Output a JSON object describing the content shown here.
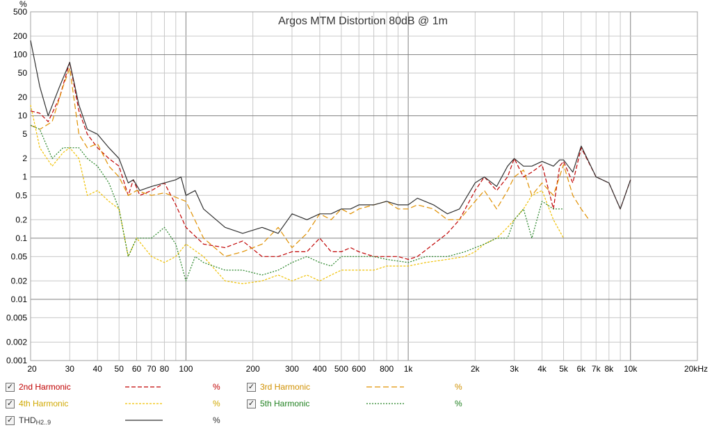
{
  "chart_data": {
    "type": "line",
    "title": "Argos MTM Distortion 80dB @ 1m",
    "xscale": "log",
    "yscale": "log",
    "xlim": [
      20,
      20000
    ],
    "ylim": [
      0.001,
      500
    ],
    "ylabel_unit": "%",
    "x_ticks": [
      {
        "v": 20,
        "label": "20"
      },
      {
        "v": 30,
        "label": "30"
      },
      {
        "v": 40,
        "label": "40"
      },
      {
        "v": 50,
        "label": "50"
      },
      {
        "v": 60,
        "label": "60"
      },
      {
        "v": 70,
        "label": "70"
      },
      {
        "v": 80,
        "label": "80"
      },
      {
        "v": 100,
        "label": "100"
      },
      {
        "v": 200,
        "label": "200"
      },
      {
        "v": 300,
        "label": "300"
      },
      {
        "v": 400,
        "label": "400"
      },
      {
        "v": 500,
        "label": "500"
      },
      {
        "v": 600,
        "label": "600"
      },
      {
        "v": 800,
        "label": "800"
      },
      {
        "v": 1000,
        "label": "1k"
      },
      {
        "v": 2000,
        "label": "2k"
      },
      {
        "v": 3000,
        "label": "3k"
      },
      {
        "v": 4000,
        "label": "4k"
      },
      {
        "v": 5000,
        "label": "5k"
      },
      {
        "v": 6000,
        "label": "6k"
      },
      {
        "v": 7000,
        "label": "7k"
      },
      {
        "v": 8000,
        "label": "8k"
      },
      {
        "v": 10000,
        "label": "10k"
      },
      {
        "v": 20000,
        "label": "20kHz"
      }
    ],
    "y_ticks": [
      {
        "v": 500,
        "label": "500"
      },
      {
        "v": 200,
        "label": "200"
      },
      {
        "v": 100,
        "label": "100"
      },
      {
        "v": 50,
        "label": "50"
      },
      {
        "v": 20,
        "label": "20"
      },
      {
        "v": 10,
        "label": "10"
      },
      {
        "v": 5,
        "label": "5"
      },
      {
        "v": 2,
        "label": "2"
      },
      {
        "v": 1,
        "label": "1"
      },
      {
        "v": 0.5,
        "label": "0.5"
      },
      {
        "v": 0.2,
        "label": "0.2"
      },
      {
        "v": 0.1,
        "label": "0.1"
      },
      {
        "v": 0.05,
        "label": "0.05"
      },
      {
        "v": 0.02,
        "label": "0.02"
      },
      {
        "v": 0.01,
        "label": "0.01"
      },
      {
        "v": 0.005,
        "label": "0.005"
      },
      {
        "v": 0.002,
        "label": "0.002"
      },
      {
        "v": 0.001,
        "label": "0.001"
      }
    ],
    "series": [
      {
        "name": "2nd Harmonic",
        "color": "#c00000",
        "dash": "6,3",
        "x": [
          20,
          22,
          24,
          27,
          30,
          33,
          36,
          40,
          45,
          50,
          55,
          58,
          62,
          70,
          80,
          90,
          100,
          120,
          150,
          180,
          220,
          260,
          300,
          350,
          400,
          450,
          500,
          550,
          600,
          700,
          800,
          900,
          1000,
          1100,
          1300,
          1500,
          1700,
          2000,
          2200,
          2500,
          2800,
          3000,
          3300,
          3600,
          4000,
          4500,
          4800,
          5000,
          5500,
          6000,
          7000,
          8000,
          9000,
          10000
        ],
        "y": [
          12,
          11,
          8,
          20,
          75,
          12,
          5,
          3,
          2,
          1.5,
          0.5,
          0.9,
          0.5,
          0.6,
          0.8,
          0.35,
          0.15,
          0.08,
          0.07,
          0.09,
          0.05,
          0.05,
          0.06,
          0.06,
          0.1,
          0.06,
          0.06,
          0.07,
          0.06,
          0.05,
          0.05,
          0.05,
          0.045,
          0.05,
          0.08,
          0.12,
          0.2,
          0.6,
          1.0,
          0.6,
          1.0,
          2.0,
          1.0,
          1.2,
          1.6,
          0.3,
          1.5,
          1.8,
          0.8,
          3.0,
          1.0,
          0.8,
          0.3,
          0.9
        ]
      },
      {
        "name": "3rd Harmonic",
        "color": "#e09000",
        "dash": "8,4",
        "x": [
          20,
          22,
          25,
          28,
          30,
          33,
          36,
          40,
          45,
          50,
          55,
          60,
          70,
          80,
          100,
          120,
          150,
          180,
          220,
          260,
          300,
          350,
          400,
          450,
          500,
          550,
          600,
          700,
          800,
          900,
          1000,
          1100,
          1300,
          1500,
          1700,
          2000,
          2200,
          2500,
          2800,
          3000,
          3300,
          3600,
          4000,
          4500,
          5000,
          5500,
          6000,
          6500
        ],
        "y": [
          7,
          6,
          8,
          30,
          60,
          5,
          3,
          3.5,
          1.5,
          1.0,
          0.5,
          0.6,
          0.5,
          0.55,
          0.4,
          0.1,
          0.05,
          0.06,
          0.08,
          0.15,
          0.07,
          0.12,
          0.25,
          0.2,
          0.3,
          0.25,
          0.3,
          0.35,
          0.4,
          0.3,
          0.3,
          0.35,
          0.3,
          0.2,
          0.2,
          0.4,
          0.6,
          0.3,
          0.6,
          1.0,
          1.3,
          0.5,
          0.8,
          0.5,
          1.6,
          0.5,
          0.3,
          0.2
        ]
      },
      {
        "name": "4th Harmonic",
        "color": "#f0c000",
        "dash": "3,2",
        "x": [
          20,
          22,
          25,
          28,
          30,
          33,
          36,
          40,
          45,
          50,
          55,
          60,
          70,
          80,
          90,
          100,
          120,
          150,
          180,
          220,
          260,
          300,
          350,
          400,
          450,
          500,
          600,
          700,
          800,
          1000,
          1200,
          1500,
          1800,
          2000,
          2200,
          2500,
          2800,
          3000,
          3300,
          3600,
          4000,
          4500,
          5000
        ],
        "y": [
          15,
          3,
          1.5,
          2.5,
          3,
          2,
          0.5,
          0.6,
          0.4,
          0.3,
          0.05,
          0.1,
          0.05,
          0.04,
          0.05,
          0.08,
          0.05,
          0.02,
          0.018,
          0.02,
          0.025,
          0.02,
          0.025,
          0.02,
          0.025,
          0.03,
          0.03,
          0.03,
          0.035,
          0.035,
          0.04,
          0.045,
          0.05,
          0.06,
          0.08,
          0.1,
          0.15,
          0.2,
          0.3,
          0.5,
          0.6,
          0.2,
          0.1
        ]
      },
      {
        "name": "5th Harmonic",
        "color": "#208020",
        "dash": "2,2",
        "x": [
          20,
          22,
          25,
          28,
          30,
          33,
          36,
          40,
          45,
          50,
          55,
          60,
          70,
          80,
          90,
          100,
          110,
          120,
          150,
          180,
          220,
          260,
          300,
          350,
          400,
          450,
          500,
          600,
          700,
          800,
          1000,
          1200,
          1500,
          1800,
          2000,
          2200,
          2500,
          2800,
          3000,
          3300,
          3600,
          4000,
          4500,
          5000
        ],
        "y": [
          7,
          6,
          2,
          3,
          3,
          3,
          2,
          1.5,
          0.8,
          0.3,
          0.05,
          0.1,
          0.1,
          0.15,
          0.08,
          0.02,
          0.05,
          0.04,
          0.03,
          0.03,
          0.025,
          0.03,
          0.04,
          0.05,
          0.04,
          0.035,
          0.05,
          0.05,
          0.05,
          0.045,
          0.04,
          0.05,
          0.05,
          0.06,
          0.07,
          0.08,
          0.1,
          0.1,
          0.2,
          0.3,
          0.1,
          0.4,
          0.3,
          0.3
        ]
      },
      {
        "name": "THD H2..9",
        "color": "#303030",
        "dash": "",
        "x": [
          20,
          22,
          24,
          27,
          30,
          33,
          36,
          40,
          45,
          50,
          55,
          58,
          62,
          70,
          80,
          90,
          95,
          100,
          110,
          120,
          150,
          180,
          220,
          260,
          300,
          350,
          400,
          450,
          500,
          550,
          600,
          700,
          800,
          900,
          1000,
          1100,
          1300,
          1500,
          1700,
          2000,
          2200,
          2500,
          2800,
          3000,
          3300,
          3600,
          4000,
          4500,
          4800,
          5000,
          5500,
          6000,
          7000,
          8000,
          9000,
          10000
        ],
        "y": [
          170,
          30,
          10,
          30,
          75,
          15,
          6,
          5,
          3,
          2,
          0.8,
          0.9,
          0.6,
          0.7,
          0.8,
          0.9,
          1.0,
          0.5,
          0.6,
          0.3,
          0.15,
          0.12,
          0.15,
          0.12,
          0.25,
          0.2,
          0.25,
          0.25,
          0.3,
          0.3,
          0.35,
          0.35,
          0.4,
          0.35,
          0.35,
          0.45,
          0.35,
          0.25,
          0.3,
          0.8,
          1.0,
          0.7,
          1.5,
          2.0,
          1.5,
          1.5,
          1.8,
          1.5,
          1.9,
          1.9,
          1.2,
          3.2,
          1.0,
          0.8,
          0.3,
          0.9
        ]
      }
    ]
  },
  "legend": {
    "items": [
      {
        "label": "2nd Harmonic",
        "unit": "%",
        "color": "#c00000",
        "checked": "✓"
      },
      {
        "label": "3rd Harmonic",
        "unit": "%",
        "color": "#d09000",
        "checked": "✓"
      },
      {
        "label": "4th Harmonic",
        "unit": "%",
        "color": "#d0a800",
        "checked": "✓"
      },
      {
        "label": "5th Harmonic",
        "unit": "%",
        "color": "#208020",
        "checked": "✓"
      },
      {
        "label": "THD",
        "sub": "H2..9",
        "unit": "%",
        "color": "#303030",
        "checked": "✓"
      }
    ]
  }
}
